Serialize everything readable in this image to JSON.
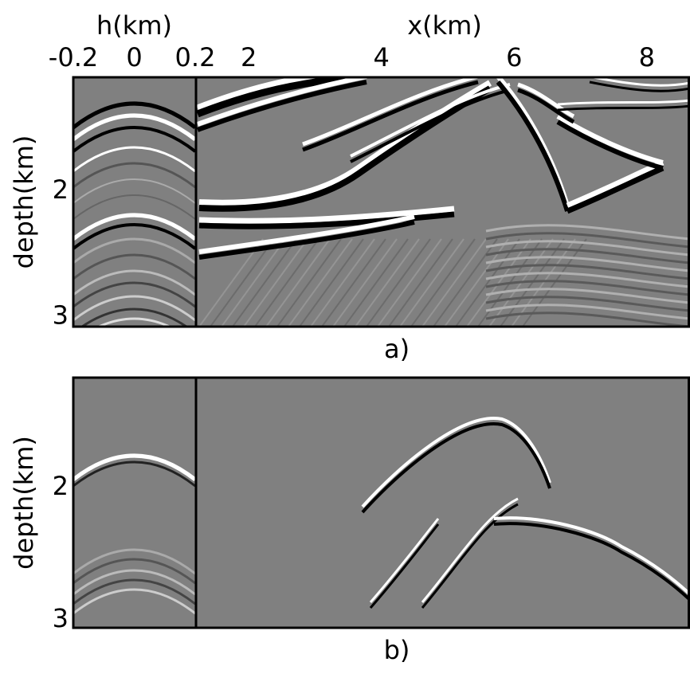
{
  "chart_data": [
    {
      "type": "image",
      "caption": "a)",
      "xlabel": "x(km)",
      "xlim": [
        1.23,
        8.65
      ],
      "xticks": [
        2,
        4,
        6,
        8
      ],
      "ylabel": "depth(km)",
      "ylim": [
        1.09,
        3.08
      ],
      "yticks": [
        2,
        3
      ],
      "gather": {
        "xlabel": "h(km)",
        "xlim": [
          -0.2,
          0.2
        ],
        "xticks": [
          -0.2,
          0,
          0.2
        ]
      }
    },
    {
      "type": "image",
      "caption": "b)",
      "ylabel": "depth(km)",
      "ylim": [
        1.17,
        3.06
      ],
      "yticks": [
        2,
        3
      ]
    }
  ]
}
